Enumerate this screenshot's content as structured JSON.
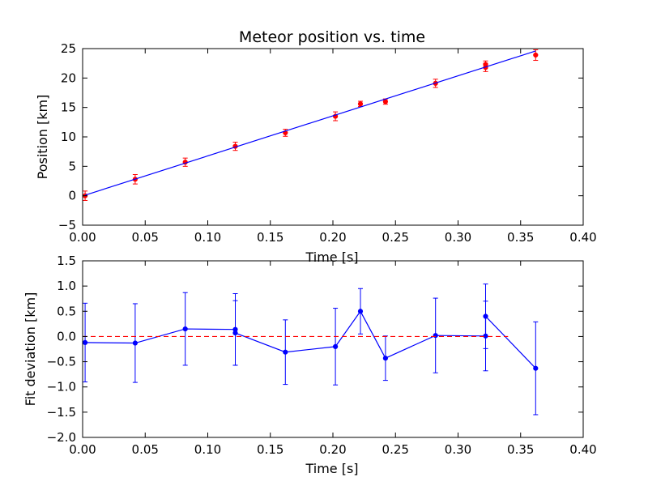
{
  "chart_data": [
    {
      "type": "scatter",
      "title": "Meteor position vs. time",
      "xlabel": "Time [s]",
      "ylabel": "Position [km]",
      "xlim": [
        0.0,
        0.4
      ],
      "ylim": [
        -5,
        25
      ],
      "xticks": [
        "0.00",
        "0.05",
        "0.10",
        "0.15",
        "0.20",
        "0.25",
        "0.30",
        "0.35",
        "0.40"
      ],
      "xtick_values": [
        0.0,
        0.05,
        0.1,
        0.15,
        0.2,
        0.25,
        0.3,
        0.35,
        0.4
      ],
      "yticks": [
        "−5",
        "0",
        "5",
        "10",
        "15",
        "20",
        "25"
      ],
      "ytick_values": [
        -5,
        0,
        5,
        10,
        15,
        20,
        25
      ],
      "grid": false,
      "series": [
        {
          "kind": "errorbar-points",
          "color": "#ff0000",
          "x": [
            0.002,
            0.042,
            0.082,
            0.122,
            0.162,
            0.202,
            0.222,
            0.242,
            0.282,
            0.322,
            0.322,
            0.362
          ],
          "y": [
            0.0,
            2.8,
            5.7,
            8.4,
            10.7,
            13.5,
            15.6,
            16.0,
            19.1,
            21.8,
            22.3,
            23.9
          ],
          "err": [
            0.8,
            0.8,
            0.7,
            0.7,
            0.6,
            0.75,
            0.45,
            0.45,
            0.7,
            0.7,
            0.6,
            0.9
          ]
        },
        {
          "kind": "fit-line",
          "color": "#0000ff",
          "x": [
            0.002,
            0.362
          ],
          "y": [
            0.1,
            24.6
          ]
        }
      ]
    },
    {
      "type": "line",
      "title": "",
      "xlabel": "Time [s]",
      "ylabel": "Fit deviation [km]",
      "xlim": [
        0.0,
        0.4
      ],
      "ylim": [
        -2.0,
        1.5
      ],
      "xticks": [
        "0.00",
        "0.05",
        "0.10",
        "0.15",
        "0.20",
        "0.25",
        "0.30",
        "0.35",
        "0.40"
      ],
      "xtick_values": [
        0.0,
        0.05,
        0.1,
        0.15,
        0.2,
        0.25,
        0.3,
        0.35,
        0.4
      ],
      "yticks": [
        "−2.0",
        "−1.5",
        "−1.0",
        "−0.5",
        "0.0",
        "0.5",
        "1.0",
        "1.5"
      ],
      "ytick_values": [
        -2.0,
        -1.5,
        -1.0,
        -0.5,
        0.0,
        0.5,
        1.0,
        1.5
      ],
      "grid": false,
      "series": [
        {
          "kind": "errorbar-line",
          "color": "#0000ff",
          "x": [
            0.002,
            0.042,
            0.082,
            0.122,
            0.122,
            0.162,
            0.202,
            0.222,
            0.242,
            0.282,
            0.322,
            0.322,
            0.362
          ],
          "y": [
            -0.12,
            -0.13,
            0.15,
            0.14,
            0.07,
            -0.31,
            -0.2,
            0.5,
            -0.43,
            0.02,
            0.01,
            0.4,
            -0.63
          ],
          "err": [
            0.78,
            0.78,
            0.72,
            0.71,
            0.64,
            0.64,
            0.76,
            0.45,
            0.44,
            0.74,
            0.69,
            0.64,
            0.92
          ]
        },
        {
          "kind": "reference-line",
          "color": "#ff0000",
          "dashed": true,
          "x": [
            0.0,
            0.34
          ],
          "y": [
            0.0,
            0.0
          ]
        }
      ]
    }
  ]
}
